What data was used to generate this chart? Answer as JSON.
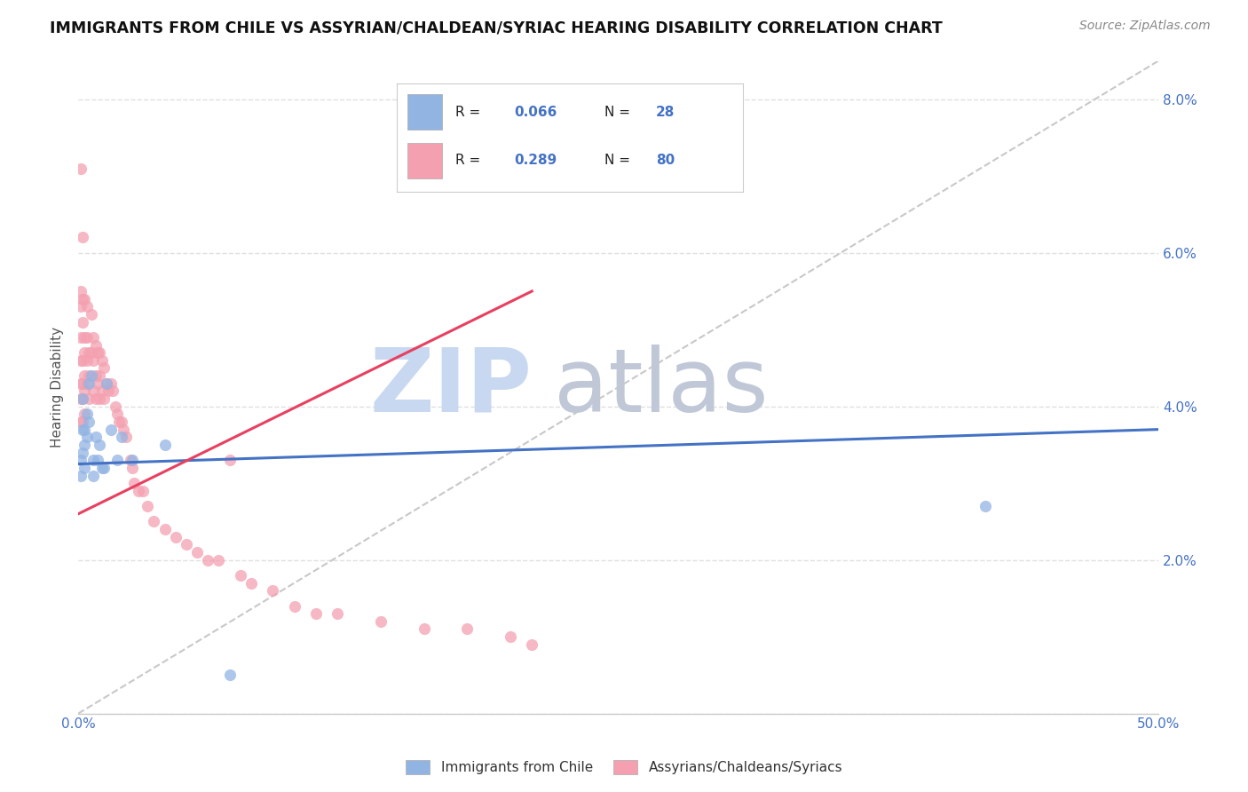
{
  "title": "IMMIGRANTS FROM CHILE VS ASSYRIAN/CHALDEAN/SYRIAC HEARING DISABILITY CORRELATION CHART",
  "source": "Source: ZipAtlas.com",
  "ylabel": "Hearing Disability",
  "xlim": [
    0.0,
    0.5
  ],
  "ylim": [
    0.0,
    0.085
  ],
  "xticks": [
    0.0,
    0.1,
    0.2,
    0.3,
    0.4,
    0.5
  ],
  "xticklabels_show": {
    "0.0": "0.0%",
    "0.5": "50.0%"
  },
  "yticks": [
    0.0,
    0.02,
    0.04,
    0.06,
    0.08
  ],
  "yticklabels_right": [
    "",
    "2.0%",
    "4.0%",
    "6.0%",
    "8.0%"
  ],
  "legend_label1": "Immigrants from Chile",
  "legend_label2": "Assyrians/Chaldeans/Syriacs",
  "r1": "0.066",
  "n1": "28",
  "r2": "0.289",
  "n2": "80",
  "color1": "#92b4e3",
  "color2": "#f4a0b0",
  "trendline_color1": "#4472c4",
  "trendline_color2": "#e84060",
  "dashed_line_color": "#c8c8c8",
  "watermark_zip": "ZIP",
  "watermark_atlas": "atlas",
  "watermark_color_zip": "#c8d8f0",
  "watermark_color_atlas": "#c0c8d8",
  "scatter1_x": [
    0.001,
    0.001,
    0.002,
    0.002,
    0.002,
    0.003,
    0.003,
    0.003,
    0.004,
    0.004,
    0.005,
    0.005,
    0.006,
    0.007,
    0.007,
    0.008,
    0.009,
    0.01,
    0.011,
    0.012,
    0.013,
    0.015,
    0.018,
    0.02,
    0.025,
    0.04,
    0.42,
    0.07
  ],
  "scatter1_y": [
    0.033,
    0.031,
    0.041,
    0.037,
    0.034,
    0.037,
    0.035,
    0.032,
    0.039,
    0.036,
    0.043,
    0.038,
    0.044,
    0.033,
    0.031,
    0.036,
    0.033,
    0.035,
    0.032,
    0.032,
    0.043,
    0.037,
    0.033,
    0.036,
    0.033,
    0.035,
    0.027,
    0.005
  ],
  "scatter2_x": [
    0.001,
    0.001,
    0.001,
    0.001,
    0.001,
    0.001,
    0.001,
    0.001,
    0.002,
    0.002,
    0.002,
    0.002,
    0.002,
    0.002,
    0.002,
    0.003,
    0.003,
    0.003,
    0.003,
    0.003,
    0.003,
    0.004,
    0.004,
    0.004,
    0.004,
    0.005,
    0.005,
    0.005,
    0.006,
    0.006,
    0.007,
    0.007,
    0.007,
    0.008,
    0.008,
    0.008,
    0.009,
    0.009,
    0.01,
    0.01,
    0.01,
    0.011,
    0.011,
    0.012,
    0.012,
    0.013,
    0.014,
    0.015,
    0.016,
    0.017,
    0.018,
    0.019,
    0.02,
    0.021,
    0.022,
    0.024,
    0.025,
    0.026,
    0.028,
    0.03,
    0.032,
    0.035,
    0.04,
    0.045,
    0.05,
    0.055,
    0.06,
    0.065,
    0.07,
    0.075,
    0.08,
    0.09,
    0.1,
    0.11,
    0.12,
    0.14,
    0.16,
    0.18,
    0.2,
    0.21
  ],
  "scatter2_y": [
    0.071,
    0.055,
    0.053,
    0.049,
    0.046,
    0.043,
    0.041,
    0.038,
    0.062,
    0.054,
    0.051,
    0.046,
    0.043,
    0.041,
    0.038,
    0.054,
    0.049,
    0.047,
    0.044,
    0.042,
    0.039,
    0.053,
    0.049,
    0.046,
    0.043,
    0.047,
    0.044,
    0.041,
    0.052,
    0.047,
    0.049,
    0.046,
    0.042,
    0.048,
    0.044,
    0.041,
    0.047,
    0.043,
    0.047,
    0.044,
    0.041,
    0.046,
    0.042,
    0.045,
    0.041,
    0.043,
    0.042,
    0.043,
    0.042,
    0.04,
    0.039,
    0.038,
    0.038,
    0.037,
    0.036,
    0.033,
    0.032,
    0.03,
    0.029,
    0.029,
    0.027,
    0.025,
    0.024,
    0.023,
    0.022,
    0.021,
    0.02,
    0.02,
    0.033,
    0.018,
    0.017,
    0.016,
    0.014,
    0.013,
    0.013,
    0.012,
    0.011,
    0.011,
    0.01,
    0.009
  ],
  "trendline1_x": [
    0.0,
    0.5
  ],
  "trendline1_y": [
    0.0325,
    0.037
  ],
  "trendline2_x": [
    0.0,
    0.21
  ],
  "trendline2_y": [
    0.026,
    0.055
  ],
  "background_color": "#ffffff",
  "grid_color": "#e0e0e0"
}
